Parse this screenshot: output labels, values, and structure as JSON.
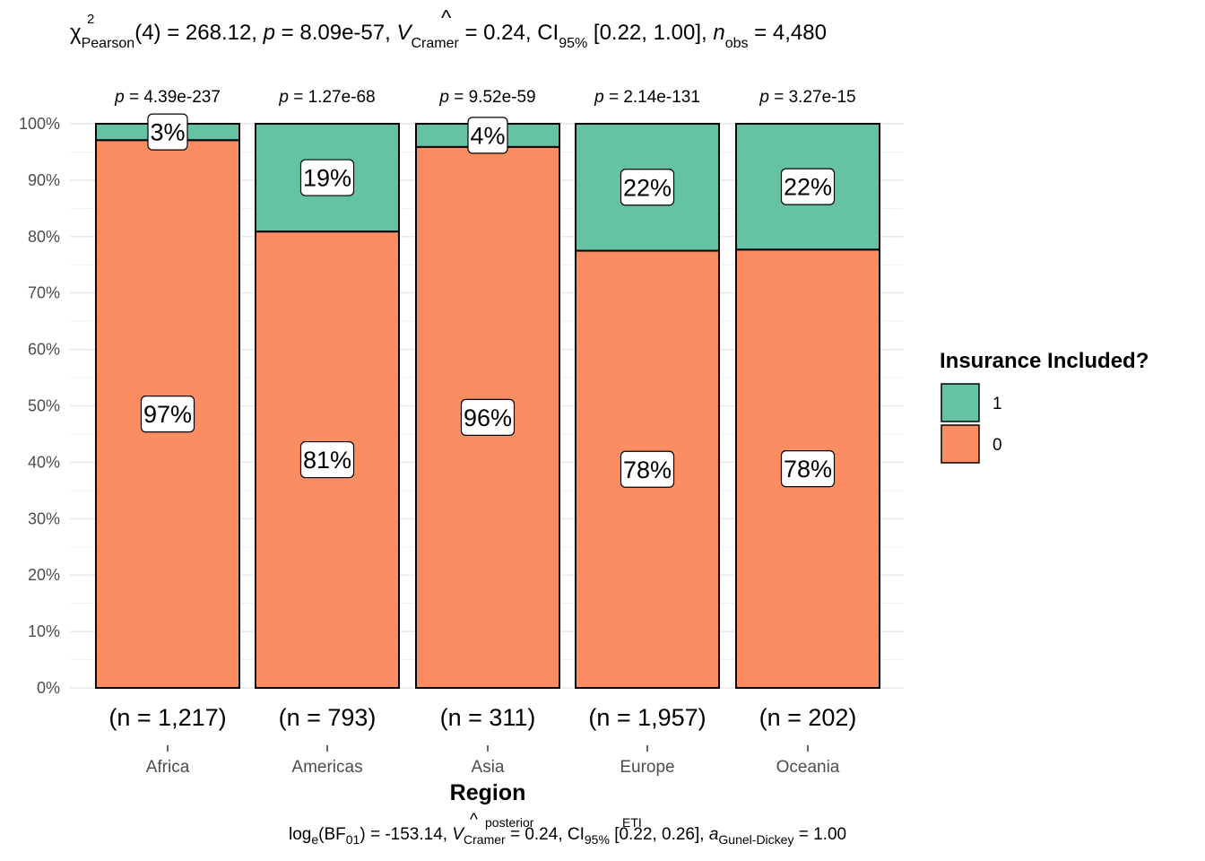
{
  "chart_data": {
    "type": "bar",
    "stacked": "percent",
    "title": {
      "chi": "χ",
      "chi_sup": "2",
      "chi_sub": "Pearson",
      "df": "(4)",
      "eq1": " = 268.12, ",
      "p": "p",
      "eq2": " = 8.09e-57, ",
      "v": "V",
      "v_hat": "^",
      "v_sub": "Cramer",
      "eq3": " = 0.24, CI",
      "ci_sub": "95%",
      "eq4": " [0.22, 1.00], ",
      "n": "n",
      "n_sub": "obs",
      "eq5": " = 4,480"
    },
    "caption": {
      "log": "log",
      "log_sub": "e",
      "bf": "(BF",
      "bf_sub": "01",
      "eq1": ") = -153.14, ",
      "v": "V",
      "v_hat": "^",
      "v_sup": "posterior",
      "v_sub": "Cramer",
      "eq2": " = 0.24, CI",
      "ci_sup": "ETI",
      "ci_sub": "95%",
      "eq3": " [0.22, 0.26], ",
      "a": "a",
      "a_sub": "Gunel-Dickey",
      "eq4": " = 1.00"
    },
    "xlabel": "Region",
    "ylabel": "",
    "ylim": [
      0,
      100
    ],
    "ytick_values": [
      0,
      10,
      20,
      30,
      40,
      50,
      60,
      70,
      80,
      90,
      100
    ],
    "ytick_labels": [
      "0%",
      "10%",
      "20%",
      "30%",
      "40%",
      "50%",
      "60%",
      "70%",
      "80%",
      "90%",
      "100%"
    ],
    "categories": [
      "Africa",
      "Americas",
      "Asia",
      "Europe",
      "Oceania"
    ],
    "p_prefix": "p",
    "p_values": [
      " = 4.39e-237",
      " = 1.27e-68",
      " = 9.52e-59",
      " = 2.14e-131",
      " = 3.27e-15"
    ],
    "n_labels": [
      "(n = 1,217)",
      "(n = 793)",
      "(n = 311)",
      "(n = 1,957)",
      "(n = 202)"
    ],
    "series": [
      {
        "name": "0",
        "color": "#FC8D62",
        "values": [
          97.1,
          80.9,
          95.9,
          77.5,
          77.7
        ],
        "labels": [
          "97%",
          "81%",
          "96%",
          "78%",
          "78%"
        ]
      },
      {
        "name": "1",
        "color": "#66C2A5",
        "values": [
          2.9,
          19.1,
          4.1,
          22.5,
          22.3
        ],
        "labels": [
          "3%",
          "19%",
          "4%",
          "22%",
          "22%"
        ]
      }
    ],
    "legend": {
      "title": "Insurance Included?",
      "position": "right",
      "entries": [
        {
          "label": "1",
          "color": "#66C2A5"
        },
        {
          "label": "0",
          "color": "#FC8D62"
        }
      ]
    }
  }
}
